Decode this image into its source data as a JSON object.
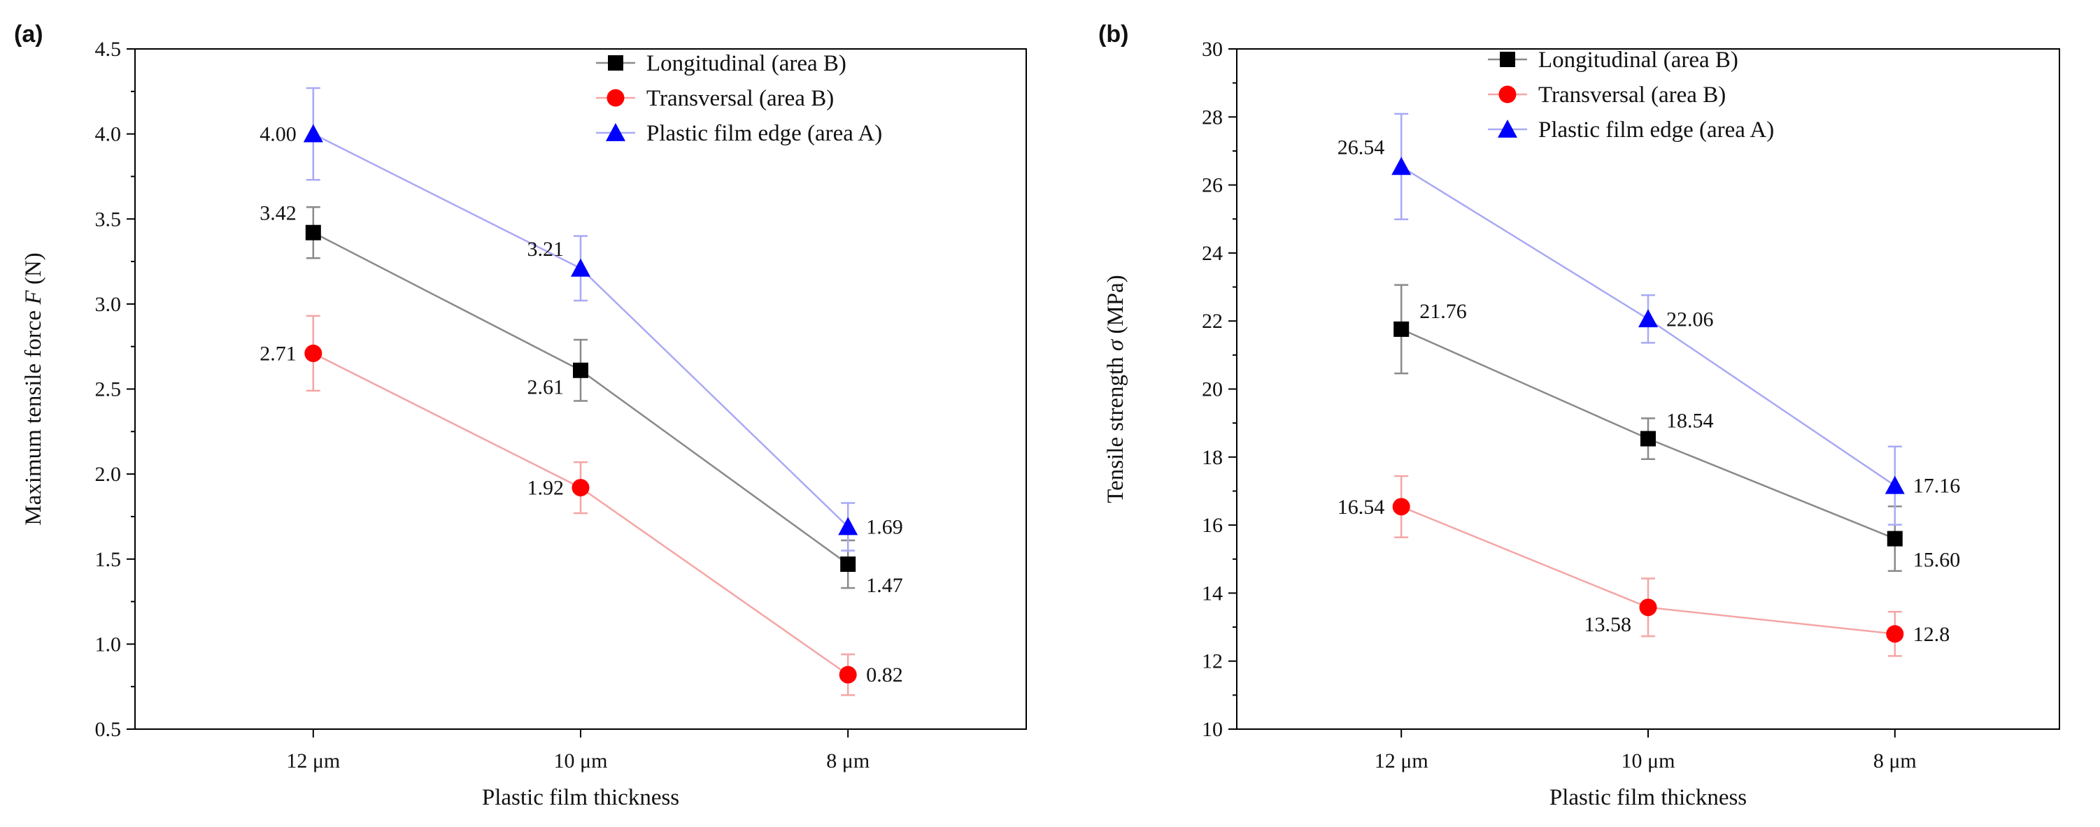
{
  "chart_data": [
    {
      "panel_label": "(a)",
      "type": "line",
      "xlabel": "Plastic film thickness",
      "ylabel_main": "Maximum tensile force ",
      "ylabel_symbol": "F",
      "ylabel_unit": " (N)",
      "categories": [
        "12 μm",
        "10 μm",
        "8 μm"
      ],
      "ylim": [
        0.5,
        4.5
      ],
      "yticks": [
        0.5,
        1.0,
        1.5,
        2.0,
        2.5,
        3.0,
        3.5,
        4.0,
        4.5
      ],
      "ytick_labels": [
        "0.5",
        "1.0",
        "1.5",
        "2.0",
        "2.5",
        "3.0",
        "3.5",
        "4.0",
        "4.5"
      ],
      "legend_position": "top-right",
      "series": [
        {
          "name": "Longitudinal (area B)",
          "marker": "square",
          "marker_color": "#000000",
          "line_color": "#8a8a8a",
          "values": [
            3.42,
            2.61,
            1.47
          ],
          "errors": [
            0.15,
            0.18,
            0.14
          ],
          "labels": [
            "3.42",
            "2.61",
            "1.47"
          ],
          "label_sides": [
            "left-above",
            "left-below",
            "right-below"
          ]
        },
        {
          "name": "Transversal (area B)",
          "marker": "circle",
          "marker_color": "#ff0000",
          "line_color": "#f5a5a5",
          "values": [
            2.71,
            1.92,
            0.82
          ],
          "errors": [
            0.22,
            0.15,
            0.12
          ],
          "labels": [
            "2.71",
            "1.92",
            "0.82"
          ],
          "label_sides": [
            "left",
            "left",
            "right"
          ]
        },
        {
          "name": "Plastic film edge (area A)",
          "marker": "triangle",
          "marker_color": "#0000ff",
          "line_color": "#a9a9f5",
          "values": [
            4.0,
            3.21,
            1.69
          ],
          "errors": [
            0.27,
            0.19,
            0.14
          ],
          "labels": [
            "4.00",
            "3.21",
            "1.69"
          ],
          "label_sides": [
            "left",
            "left-above",
            "right"
          ]
        }
      ]
    },
    {
      "panel_label": "(b)",
      "type": "line",
      "xlabel": "Plastic film thickness",
      "ylabel_main": "Tensile strength ",
      "ylabel_symbol": "σ",
      "ylabel_unit": " (MPa)",
      "categories": [
        "12 μm",
        "10 μm",
        "8 μm"
      ],
      "ylim": [
        10,
        30
      ],
      "yticks": [
        10,
        12,
        14,
        16,
        18,
        20,
        22,
        24,
        26,
        28,
        30
      ],
      "ytick_labels": [
        "10",
        "12",
        "14",
        "16",
        "18",
        "20",
        "22",
        "24",
        "26",
        "28",
        "30"
      ],
      "legend_position": "top-center",
      "series": [
        {
          "name": "Longitudinal (area B)",
          "marker": "square",
          "marker_color": "#000000",
          "line_color": "#8a8a8a",
          "values": [
            21.76,
            18.54,
            15.6
          ],
          "errors": [
            1.3,
            0.6,
            0.95
          ],
          "labels": [
            "21.76",
            "18.54",
            "15.60"
          ],
          "label_sides": [
            "right-above",
            "right-above",
            "right-below"
          ]
        },
        {
          "name": "Transversal (area B)",
          "marker": "circle",
          "marker_color": "#ff0000",
          "line_color": "#f5a5a5",
          "values": [
            16.54,
            13.58,
            12.8
          ],
          "errors": [
            0.9,
            0.85,
            0.65
          ],
          "labels": [
            "16.54",
            "13.58",
            "12.8"
          ],
          "label_sides": [
            "left",
            "left-below",
            "right"
          ]
        },
        {
          "name": "Plastic film edge (area A)",
          "marker": "triangle",
          "marker_color": "#0000ff",
          "line_color": "#a9a9f5",
          "values": [
            26.54,
            22.06,
            17.16
          ],
          "errors": [
            1.55,
            0.7,
            1.15
          ],
          "labels": [
            "26.54",
            "22.06",
            "17.16"
          ],
          "label_sides": [
            "left-above",
            "right",
            "right"
          ]
        }
      ]
    }
  ]
}
